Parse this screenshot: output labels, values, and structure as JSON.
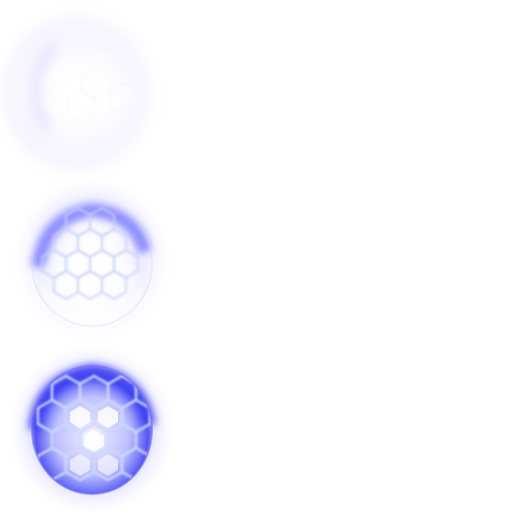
{
  "sprite_sheet": {
    "colors": {
      "background": "#ffffff",
      "glow": "#4a4cff",
      "glow_soft": "#8f8cff",
      "line": "#c9d6ff",
      "core": "#ffffff"
    },
    "frames": [
      {
        "name": "shield-frame-faint",
        "intensity": 0.25
      },
      {
        "name": "shield-frame-medium",
        "intensity": 0.7
      },
      {
        "name": "shield-frame-full",
        "intensity": 1.0
      }
    ]
  }
}
